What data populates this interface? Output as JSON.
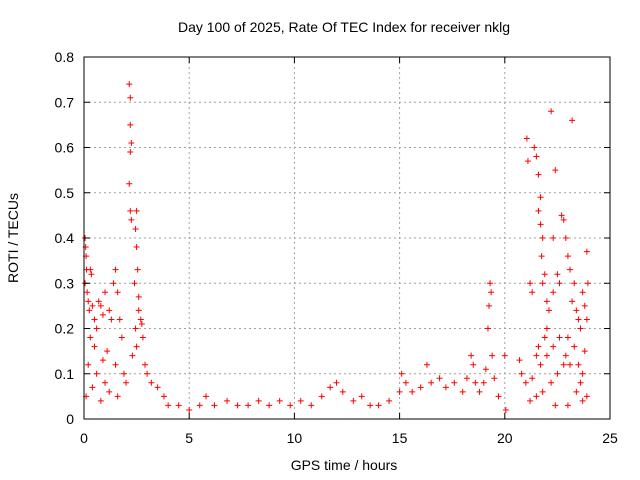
{
  "chart_data": {
    "type": "scatter",
    "title": "Day 100 of 2025, Rate Of TEC Index for receiver nklg",
    "xlabel": "GPS time / hours",
    "ylabel": "ROTI / TECUs",
    "xlim": [
      0,
      25
    ],
    "ylim": [
      0,
      0.8
    ],
    "xticks": [
      "0",
      "5",
      "10",
      "15",
      "20",
      "25"
    ],
    "yticks": [
      "0",
      "0.1",
      "0.2",
      "0.3",
      "0.4",
      "0.5",
      "0.6",
      "0.7",
      "0.8"
    ],
    "grid": true,
    "marker": "+",
    "color": "#ff0000",
    "points": [
      [
        0.05,
        0.4
      ],
      [
        0.08,
        0.38
      ],
      [
        0.1,
        0.36
      ],
      [
        0.12,
        0.33
      ],
      [
        0.05,
        0.3
      ],
      [
        0.15,
        0.28
      ],
      [
        0.2,
        0.26
      ],
      [
        0.3,
        0.33
      ],
      [
        0.35,
        0.32
      ],
      [
        0.25,
        0.24
      ],
      [
        0.4,
        0.25
      ],
      [
        0.5,
        0.22
      ],
      [
        0.6,
        0.2
      ],
      [
        0.7,
        0.26
      ],
      [
        0.8,
        0.25
      ],
      [
        0.9,
        0.23
      ],
      [
        1.0,
        0.28
      ],
      [
        1.2,
        0.24
      ],
      [
        1.3,
        0.22
      ],
      [
        1.4,
        0.3
      ],
      [
        1.5,
        0.33
      ],
      [
        1.6,
        0.28
      ],
      [
        1.7,
        0.22
      ],
      [
        1.8,
        0.18
      ],
      [
        1.1,
        0.15
      ],
      [
        0.5,
        0.16
      ],
      [
        0.3,
        0.18
      ],
      [
        0.2,
        0.12
      ],
      [
        0.6,
        0.1
      ],
      [
        0.9,
        0.13
      ],
      [
        1.0,
        0.08
      ],
      [
        1.5,
        0.12
      ],
      [
        1.9,
        0.1
      ],
      [
        0.1,
        0.05
      ],
      [
        0.4,
        0.07
      ],
      [
        0.8,
        0.04
      ],
      [
        1.2,
        0.06
      ],
      [
        1.6,
        0.05
      ],
      [
        2.0,
        0.08
      ],
      [
        2.15,
        0.74
      ],
      [
        2.2,
        0.71
      ],
      [
        2.2,
        0.65
      ],
      [
        2.25,
        0.61
      ],
      [
        2.2,
        0.59
      ],
      [
        2.15,
        0.52
      ],
      [
        2.2,
        0.46
      ],
      [
        2.25,
        0.44
      ],
      [
        2.5,
        0.46
      ],
      [
        2.45,
        0.42
      ],
      [
        2.5,
        0.38
      ],
      [
        2.55,
        0.33
      ],
      [
        2.4,
        0.3
      ],
      [
        2.6,
        0.27
      ],
      [
        2.7,
        0.22
      ],
      [
        2.75,
        0.21
      ],
      [
        2.8,
        0.18
      ],
      [
        2.5,
        0.16
      ],
      [
        2.9,
        0.12
      ],
      [
        3.0,
        0.1
      ],
      [
        3.2,
        0.08
      ],
      [
        3.5,
        0.07
      ],
      [
        3.8,
        0.05
      ],
      [
        2.3,
        0.14
      ],
      [
        2.45,
        0.2
      ],
      [
        2.6,
        0.24
      ],
      [
        4.0,
        0.03
      ],
      [
        4.5,
        0.03
      ],
      [
        5.0,
        0.02
      ],
      [
        5.5,
        0.03
      ],
      [
        5.8,
        0.05
      ],
      [
        6.2,
        0.03
      ],
      [
        6.8,
        0.04
      ],
      [
        7.3,
        0.03
      ],
      [
        7.8,
        0.03
      ],
      [
        8.3,
        0.04
      ],
      [
        8.8,
        0.03
      ],
      [
        9.3,
        0.04
      ],
      [
        9.8,
        0.03
      ],
      [
        10.3,
        0.04
      ],
      [
        10.8,
        0.03
      ],
      [
        11.3,
        0.05
      ],
      [
        11.7,
        0.07
      ],
      [
        12.0,
        0.08
      ],
      [
        12.3,
        0.06
      ],
      [
        12.8,
        0.04
      ],
      [
        13.2,
        0.05
      ],
      [
        13.6,
        0.03
      ],
      [
        14.0,
        0.03
      ],
      [
        14.5,
        0.04
      ],
      [
        15.0,
        0.06
      ],
      [
        15.1,
        0.1
      ],
      [
        15.3,
        0.08
      ],
      [
        15.6,
        0.06
      ],
      [
        16.0,
        0.07
      ],
      [
        16.3,
        0.12
      ],
      [
        16.5,
        0.08
      ],
      [
        16.9,
        0.09
      ],
      [
        17.2,
        0.07
      ],
      [
        17.6,
        0.08
      ],
      [
        18.0,
        0.06
      ],
      [
        18.2,
        0.09
      ],
      [
        18.4,
        0.14
      ],
      [
        18.5,
        0.12
      ],
      [
        18.6,
        0.08
      ],
      [
        18.8,
        0.06
      ],
      [
        19.0,
        0.08
      ],
      [
        19.1,
        0.11
      ],
      [
        19.2,
        0.2
      ],
      [
        19.25,
        0.25
      ],
      [
        19.3,
        0.3
      ],
      [
        19.35,
        0.28
      ],
      [
        19.4,
        0.14
      ],
      [
        19.5,
        0.09
      ],
      [
        19.7,
        0.05
      ],
      [
        20.0,
        0.14
      ],
      [
        20.05,
        0.02
      ],
      [
        20.7,
        0.13
      ],
      [
        20.8,
        0.1
      ],
      [
        21.0,
        0.08
      ],
      [
        21.05,
        0.62
      ],
      [
        21.1,
        0.57
      ],
      [
        21.2,
        0.3
      ],
      [
        21.3,
        0.28
      ],
      [
        21.4,
        0.6
      ],
      [
        21.5,
        0.58
      ],
      [
        21.6,
        0.54
      ],
      [
        21.7,
        0.49
      ],
      [
        21.6,
        0.46
      ],
      [
        21.7,
        0.43
      ],
      [
        21.8,
        0.4
      ],
      [
        21.75,
        0.36
      ],
      [
        21.9,
        0.32
      ],
      [
        21.8,
        0.3
      ],
      [
        22.0,
        0.26
      ],
      [
        22.1,
        0.24
      ],
      [
        22.0,
        0.2
      ],
      [
        21.9,
        0.18
      ],
      [
        22.2,
        0.68
      ],
      [
        22.3,
        0.4
      ],
      [
        22.4,
        0.55
      ],
      [
        22.5,
        0.32
      ],
      [
        22.3,
        0.28
      ],
      [
        22.6,
        0.3
      ],
      [
        22.7,
        0.45
      ],
      [
        22.8,
        0.44
      ],
      [
        22.9,
        0.4
      ],
      [
        23.0,
        0.36
      ],
      [
        23.1,
        0.33
      ],
      [
        23.2,
        0.66
      ],
      [
        23.3,
        0.3
      ],
      [
        23.2,
        0.26
      ],
      [
        23.4,
        0.24
      ],
      [
        23.5,
        0.22
      ],
      [
        23.6,
        0.2
      ],
      [
        23.7,
        0.28
      ],
      [
        23.8,
        0.25
      ],
      [
        23.9,
        0.37
      ],
      [
        23.95,
        0.3
      ],
      [
        23.9,
        0.22
      ],
      [
        23.8,
        0.15
      ],
      [
        23.7,
        0.1
      ],
      [
        23.6,
        0.08
      ],
      [
        23.5,
        0.12
      ],
      [
        23.3,
        0.16
      ],
      [
        23.0,
        0.18
      ],
      [
        22.8,
        0.12
      ],
      [
        22.5,
        0.1
      ],
      [
        22.2,
        0.08
      ],
      [
        21.8,
        0.06
      ],
      [
        21.5,
        0.05
      ],
      [
        21.3,
        0.09
      ],
      [
        21.5,
        0.14
      ],
      [
        21.6,
        0.16
      ],
      [
        21.7,
        0.12
      ],
      [
        22.0,
        0.14
      ],
      [
        22.3,
        0.16
      ],
      [
        22.6,
        0.18
      ],
      [
        22.9,
        0.14
      ],
      [
        23.1,
        0.12
      ],
      [
        23.4,
        0.06
      ],
      [
        23.7,
        0.04
      ],
      [
        23.9,
        0.05
      ],
      [
        21.2,
        0.04
      ],
      [
        22.4,
        0.03
      ],
      [
        23.0,
        0.03
      ]
    ]
  }
}
